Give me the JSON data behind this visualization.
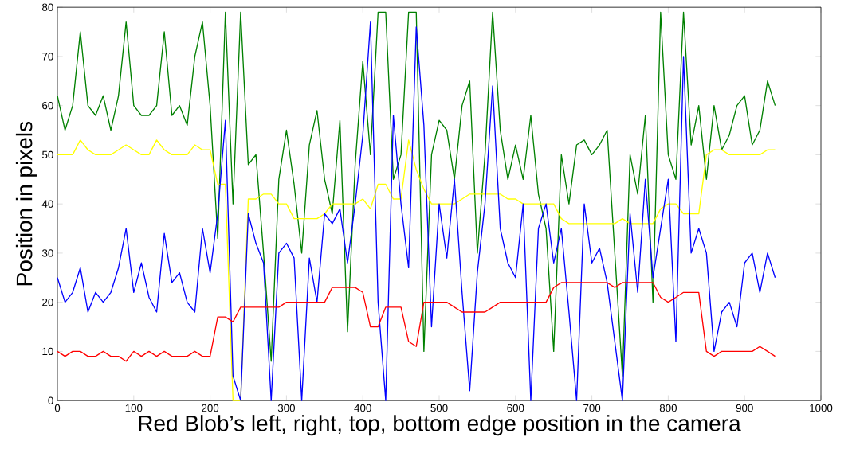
{
  "chart_data": {
    "type": "line",
    "xlabel": "Red Blob’s left, right, top, bottom edge position in the camera",
    "ylabel": "Position in pixels",
    "x": [
      0,
      10,
      20,
      30,
      40,
      50,
      60,
      70,
      80,
      90,
      100,
      110,
      120,
      130,
      140,
      150,
      160,
      170,
      180,
      190,
      200,
      210,
      220,
      230,
      240,
      250,
      260,
      270,
      280,
      290,
      300,
      310,
      320,
      330,
      340,
      350,
      360,
      370,
      380,
      390,
      400,
      410,
      420,
      430,
      440,
      450,
      460,
      470,
      480,
      490,
      500,
      510,
      520,
      530,
      540,
      550,
      560,
      570,
      580,
      590,
      600,
      610,
      620,
      630,
      640,
      650,
      660,
      670,
      680,
      690,
      700,
      710,
      720,
      730,
      740,
      750,
      760,
      770,
      780,
      790,
      800,
      810,
      820,
      830,
      840,
      850,
      860,
      870,
      880,
      890,
      900,
      910,
      920,
      930,
      940
    ],
    "series": [
      {
        "color": "#008000",
        "values": [
          62,
          55,
          60,
          75,
          60,
          58,
          62,
          55,
          62,
          77,
          60,
          58,
          58,
          60,
          75,
          58,
          60,
          56,
          70,
          77,
          60,
          33,
          79,
          40,
          79,
          48,
          50,
          30,
          8,
          45,
          55,
          44,
          30,
          52,
          59,
          45,
          38,
          57,
          14,
          48,
          69,
          50,
          79,
          79,
          45,
          50,
          79,
          79,
          10,
          50,
          57,
          55,
          45,
          60,
          65,
          30,
          50,
          79,
          55,
          45,
          52,
          45,
          58,
          42,
          35,
          10,
          50,
          40,
          52,
          53,
          50,
          52,
          55,
          30,
          5,
          50,
          42,
          58,
          20,
          79,
          50,
          45,
          79,
          52,
          60,
          45,
          60,
          51,
          54,
          60,
          62,
          52,
          55,
          65,
          60
        ]
      },
      {
        "color": "#ffff00",
        "values": [
          50,
          50,
          50,
          53,
          51,
          50,
          50,
          50,
          51,
          52,
          51,
          50,
          50,
          53,
          51,
          50,
          50,
          50,
          52,
          51,
          51,
          44,
          44,
          0,
          0,
          41,
          41,
          42,
          42,
          40,
          40,
          37,
          37,
          37,
          37,
          38,
          40,
          40,
          40,
          40,
          41,
          39,
          44,
          44,
          41,
          41,
          53,
          47,
          43,
          40,
          40,
          40,
          40,
          41,
          42,
          42,
          42,
          42,
          42,
          41,
          41,
          40,
          40,
          40,
          40,
          40,
          37,
          36,
          36,
          36,
          36,
          36,
          36,
          36,
          37,
          36,
          36,
          36,
          36,
          39,
          40,
          40,
          38,
          38,
          38,
          50,
          51,
          51,
          50,
          50,
          50,
          50,
          50,
          51,
          51
        ]
      },
      {
        "color": "#0000ff",
        "values": [
          25,
          20,
          22,
          27,
          18,
          22,
          20,
          22,
          27,
          35,
          22,
          28,
          21,
          18,
          34,
          24,
          26,
          20,
          18,
          35,
          26,
          38,
          57,
          5,
          0,
          38,
          32,
          28,
          0,
          30,
          32,
          29,
          0,
          29,
          20,
          38,
          36,
          39,
          28,
          40,
          54,
          77,
          20,
          0,
          58,
          40,
          27,
          76,
          56,
          15,
          40,
          29,
          45,
          22,
          2,
          26,
          40,
          64,
          35,
          28,
          25,
          40,
          0,
          35,
          40,
          28,
          35,
          18,
          0,
          40,
          28,
          31,
          24,
          12,
          0,
          38,
          22,
          45,
          25,
          35,
          45,
          12,
          70,
          30,
          35,
          30,
          10,
          18,
          20,
          15,
          28,
          30,
          22,
          30,
          25
        ]
      },
      {
        "color": "#ff0000",
        "values": [
          10,
          9,
          10,
          10,
          9,
          9,
          10,
          9,
          9,
          8,
          10,
          9,
          10,
          9,
          10,
          9,
          9,
          9,
          10,
          9,
          9,
          17,
          17,
          16,
          19,
          19,
          19,
          19,
          19,
          19,
          20,
          20,
          20,
          20,
          20,
          20,
          23,
          23,
          23,
          23,
          22,
          15,
          15,
          19,
          19,
          19,
          12,
          11,
          20,
          20,
          20,
          20,
          19,
          18,
          18,
          18,
          18,
          19,
          20,
          20,
          20,
          20,
          20,
          20,
          20,
          23,
          24,
          24,
          24,
          24,
          24,
          24,
          24,
          23,
          24,
          24,
          24,
          24,
          24,
          21,
          20,
          21,
          22,
          22,
          22,
          10,
          9,
          10,
          10,
          10,
          10,
          10,
          11,
          10,
          9
        ]
      }
    ],
    "xlim": [
      0,
      1000
    ],
    "ylim": [
      0,
      80
    ],
    "xticks": [
      0,
      100,
      200,
      300,
      400,
      500,
      600,
      700,
      800,
      900,
      1000
    ],
    "yticks": [
      0,
      10,
      20,
      30,
      40,
      50,
      60,
      70,
      80
    ]
  }
}
